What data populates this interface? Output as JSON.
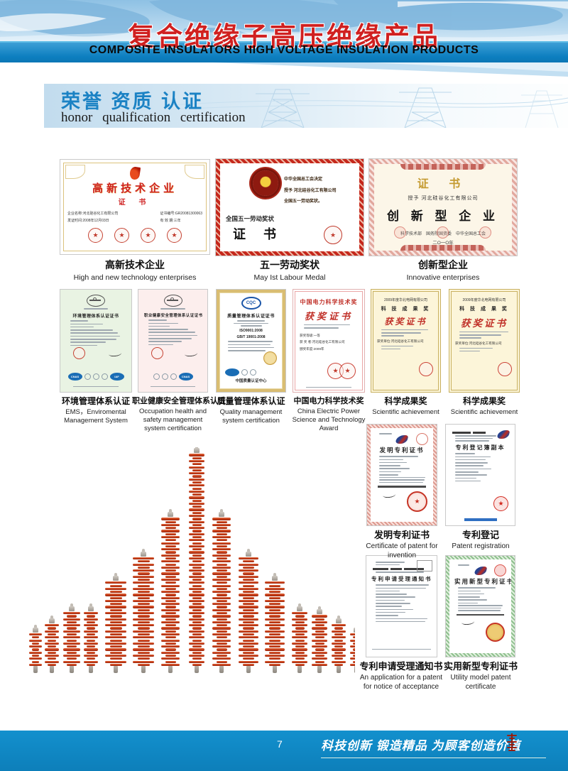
{
  "header": {
    "title_cn": "复合绝缘子高压绝缘产品",
    "title_en": "COMPOSITE INSULATORS HIGH VOLTAGE INSULATION PRODUCTS"
  },
  "section": {
    "title_cn": "荣誉 资质 认证",
    "title_en": "honor qualification certification"
  },
  "row1": {
    "hitech": {
      "title": "高新技术企业",
      "subtitle": "证 书",
      "line_company": "企业名称:河北硅谷化工有限公司",
      "line_date": "发证时间:2008年12月03日",
      "line_serial": "证书编号:GR20081300063",
      "line_term": "有 效 期:三年",
      "caption_cn": "高新技术企业",
      "caption_en": "High and new technology enterprises"
    },
    "labour": {
      "right_line1": "中华全国总工会决定",
      "right_line2": "授予 河北硅谷化工有限公司",
      "right_line3": "全国五一劳动奖状。",
      "left_label": "全国五一劳动奖状",
      "big": "证 书",
      "caption_cn": "五一劳动奖状",
      "caption_en": "May Ist Labour Medal"
    },
    "innovative": {
      "title": "证 书",
      "award_line": "授予  河北硅谷化工有限公司",
      "big": "创 新 型 企 业",
      "orgs": "科学技术部　国务院国资委　中华全国总工会",
      "year": "二O一O年",
      "caption_cn": "创新型企业",
      "caption_en": "Innovative enterprises"
    }
  },
  "row2": {
    "ems": {
      "title": "环境管理体系认证证书",
      "caption_cn": "环境管理体系认证",
      "caption_en": "EMS，Enviromental Management System"
    },
    "ohs": {
      "title": "职业健康安全管理体系认证证书",
      "caption_cn": "职业健康安全管理体系认证",
      "caption_en": "Occupation health and safety management system certification"
    },
    "qms": {
      "title": "质量管理体系认证证书",
      "std1": "ISO9001:2008",
      "std2": "GB/T 19001-2008",
      "footer": "中国质量认证中心",
      "caption_cn": "质量管理体系认证",
      "caption_en": "Quality management system certification"
    },
    "power_award": {
      "title": "中国电力科学技术奖",
      "cert": "获奖证书",
      "line_grade": "获奖等级:一等",
      "line_winner": "获 奖 者:河北硅谷化工有限公司",
      "line_year": "颁奖年度:2009年",
      "caption_cn": "中国电力科学技术奖",
      "caption_en": "China Electric Power Science and Technology Award"
    },
    "achievement": {
      "line_org": "2009年度华北电网有限公司",
      "line_award": "科 技 成 果 奖",
      "cert": "获奖证书",
      "line_winner": "获奖单位:河北硅谷化工有限公司",
      "caption_cn": "科学成果奖",
      "caption_en": "Scientific achievement"
    }
  },
  "patents": {
    "invention": {
      "title": "发明专利证书",
      "caption_cn": "发明专利证书",
      "caption_en": "Certificate of patent for invention"
    },
    "registration": {
      "title": "专利登记簿副本",
      "caption_cn": "专利登记",
      "caption_en": "Patent registration"
    },
    "acceptance": {
      "title": "专利申请受理通知书",
      "caption_cn": "专利申请受理通知书",
      "caption_en": "An application for a patent for notice of acceptance"
    },
    "utility": {
      "title": "实用新型专利证书",
      "caption_cn": "实用新型专利证书",
      "caption_en": "Utility model patent certificate"
    }
  },
  "footer": {
    "page_number": "7",
    "slogan": "科技创新  锻造精品  为顾客创造价值"
  },
  "colors": {
    "title_red": "#d02020",
    "header_band_blue": "#0d7fc0",
    "section_blue": "#1b82c4",
    "footer_blue": "#0e86c4",
    "insulator_red": "#c23a17"
  },
  "product_image": {
    "description": "lineup of red composite suspension insulators of increasing voltage class, tallest in center",
    "insulators": [
      [
        30,
        62,
        18
      ],
      [
        53,
        78,
        20
      ],
      [
        81,
        92,
        24
      ],
      [
        108,
        95,
        20
      ],
      [
        143,
        136,
        30
      ],
      [
        182,
        172,
        30
      ],
      [
        220,
        228,
        26
      ],
      [
        257,
        318,
        22
      ],
      [
        292,
        228,
        26
      ],
      [
        330,
        172,
        28
      ],
      [
        367,
        138,
        28
      ],
      [
        402,
        92,
        22
      ],
      [
        430,
        88,
        22
      ],
      [
        457,
        78,
        20
      ],
      [
        482,
        62,
        18
      ],
      [
        500,
        70,
        16
      ]
    ]
  }
}
